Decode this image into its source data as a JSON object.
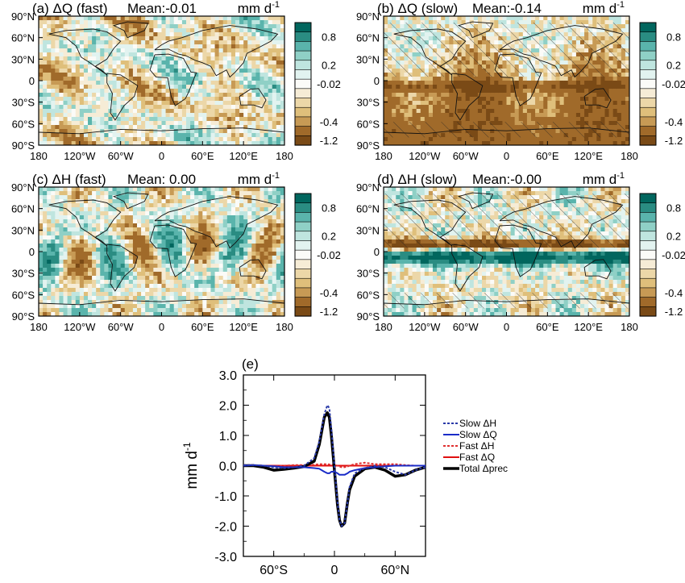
{
  "figure": {
    "lat_ticks": [
      "90°N",
      "60°N",
      "30°N",
      "0",
      "30°S",
      "60°S",
      "90°S"
    ],
    "lon_ticks": [
      "180",
      "120°W",
      "60°W",
      "0",
      "60°E",
      "120°E",
      "180"
    ],
    "colorbar_labels": [
      "0.8",
      "0.2",
      "-0.02",
      "-0.4",
      "-1.2"
    ],
    "palette": [
      "#01665e",
      "#2a8c82",
      "#5ab4ac",
      "#8fd0c6",
      "#bfe5df",
      "#e2f3f0",
      "#fbfbf8",
      "#f6ecd6",
      "#ecd7a8",
      "#dfbf7b",
      "#c79a55",
      "#a06a2a",
      "#7a4a16"
    ],
    "panels": [
      {
        "title": "(a) ΔQ (fast)",
        "mean": "Mean:-0.01",
        "units": "mm d",
        "units_sup": "-1",
        "hatched": false
      },
      {
        "title": "(b) ΔQ (slow)",
        "mean": "Mean:-0.14",
        "units": "mm d",
        "units_sup": "-1",
        "hatched": true
      },
      {
        "title": "(c) ΔH (fast)",
        "mean": "Mean: 0.00",
        "units": "mm d",
        "units_sup": "-1",
        "hatched": false
      },
      {
        "title": "(d) ΔH (slow)",
        "mean": "Mean:-0.00",
        "units": "mm d",
        "units_sup": "-1",
        "hatched": true
      }
    ]
  },
  "chart_data": {
    "type": "line",
    "title": "(e)",
    "ylabel": "mm d",
    "ylabel_sup": "-1",
    "xlim": [
      -90,
      90
    ],
    "ylim": [
      -3.0,
      3.0
    ],
    "yticks": [
      "3.0",
      "2.0",
      "1.0",
      "0.0",
      "-1.0",
      "-2.0",
      "-3.0"
    ],
    "xticks": [
      {
        "v": -60,
        "label": "60°S"
      },
      {
        "v": 0,
        "label": "0"
      },
      {
        "v": 60,
        "label": "60°N"
      }
    ],
    "legend_position": "right",
    "x": [
      -90,
      -80,
      -70,
      -60,
      -50,
      -40,
      -30,
      -20,
      -15,
      -10,
      -7,
      -5,
      -3,
      0,
      3,
      5,
      7,
      10,
      13,
      15,
      20,
      30,
      40,
      50,
      60,
      70,
      80,
      90
    ],
    "series": [
      {
        "name": "Slow ΔH",
        "color": "#2a3aa8",
        "dash": "3,2",
        "width": 2,
        "values": [
          0.02,
          0.02,
          0.0,
          -0.05,
          -0.08,
          -0.05,
          0.0,
          0.25,
          0.8,
          1.7,
          2.0,
          1.9,
          1.2,
          0.0,
          -1.2,
          -1.8,
          -2.0,
          -1.9,
          -1.2,
          -0.7,
          -0.25,
          -0.08,
          0.0,
          -0.05,
          -0.2,
          -0.3,
          -0.15,
          -0.05
        ]
      },
      {
        "name": "Slow ΔQ",
        "color": "#1a2cc8",
        "dash": "",
        "width": 2,
        "values": [
          0.0,
          0.02,
          0.0,
          -0.02,
          -0.05,
          -0.05,
          -0.05,
          -0.08,
          -0.1,
          -0.2,
          -0.25,
          -0.25,
          -0.2,
          -0.2,
          -0.25,
          -0.3,
          -0.3,
          -0.3,
          -0.25,
          -0.2,
          -0.15,
          -0.08,
          -0.05,
          -0.02,
          0.0,
          0.0,
          0.0,
          0.0
        ]
      },
      {
        "name": "Fast ΔH",
        "color": "#e03030",
        "dash": "3,2",
        "width": 2,
        "values": [
          0.02,
          0.02,
          0.0,
          -0.02,
          0.0,
          0.02,
          0.02,
          0.03,
          0.05,
          0.05,
          0.05,
          0.04,
          0.03,
          0.02,
          0.0,
          -0.03,
          -0.05,
          -0.05,
          -0.03,
          0.0,
          0.05,
          0.1,
          0.05,
          0.05,
          0.05,
          0.02,
          0.0,
          0.0
        ]
      },
      {
        "name": "Fast ΔQ",
        "color": "#e01010",
        "dash": "",
        "width": 2,
        "values": [
          0.0,
          0.0,
          0.0,
          0.0,
          0.0,
          0.0,
          0.0,
          0.0,
          0.0,
          0.0,
          0.0,
          0.0,
          0.0,
          0.0,
          0.0,
          0.0,
          0.0,
          0.0,
          0.0,
          0.0,
          0.0,
          0.0,
          0.0,
          0.0,
          0.0,
          0.0,
          0.0,
          0.0
        ]
      },
      {
        "name": "Total Δprec",
        "color": "#000000",
        "dash": "",
        "width": 3.5,
        "values": [
          0.0,
          0.0,
          -0.05,
          -0.15,
          -0.12,
          -0.08,
          -0.03,
          0.15,
          0.7,
          1.6,
          1.75,
          1.6,
          1.0,
          -0.15,
          -1.3,
          -1.8,
          -2.0,
          -1.9,
          -1.2,
          -0.8,
          -0.35,
          -0.1,
          -0.05,
          -0.15,
          -0.35,
          -0.3,
          -0.15,
          -0.05
        ]
      }
    ]
  }
}
